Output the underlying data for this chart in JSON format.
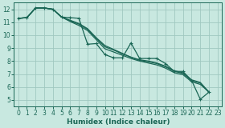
{
  "xlabel": "Humidex (Indice chaleur)",
  "ylabel": "",
  "bg_color": "#c8e8e0",
  "grid_color": "#a0c8c0",
  "line_color": "#1a6655",
  "spine_color": "#1a6655",
  "xlim": [
    -0.5,
    23.5
  ],
  "ylim": [
    4.5,
    12.5
  ],
  "xticks": [
    0,
    1,
    2,
    3,
    4,
    5,
    6,
    7,
    8,
    9,
    10,
    11,
    12,
    13,
    14,
    15,
    16,
    17,
    18,
    19,
    20,
    21,
    22,
    23
  ],
  "yticks": [
    5,
    6,
    7,
    8,
    9,
    10,
    11,
    12
  ],
  "lines": [
    {
      "x": [
        0,
        1,
        2,
        3,
        4,
        5,
        6,
        7,
        8,
        9,
        10,
        11,
        12,
        13,
        14,
        15,
        16,
        17,
        18,
        19,
        20,
        21,
        22
      ],
      "y": [
        11.3,
        11.35,
        12.1,
        12.1,
        12.0,
        11.4,
        11.15,
        10.9,
        10.5,
        9.8,
        9.2,
        8.9,
        8.6,
        8.3,
        8.1,
        8.0,
        7.85,
        7.6,
        7.25,
        7.1,
        6.55,
        6.35,
        5.6
      ],
      "marker": null,
      "lw": 0.9
    },
    {
      "x": [
        0,
        1,
        2,
        3,
        4,
        5,
        6,
        7,
        8,
        9,
        10,
        11,
        12,
        13,
        14,
        15,
        16,
        17,
        18,
        19,
        20,
        21,
        22
      ],
      "y": [
        11.3,
        11.35,
        12.1,
        12.1,
        12.0,
        11.4,
        11.1,
        10.85,
        10.45,
        9.75,
        9.1,
        8.85,
        8.55,
        8.3,
        8.05,
        7.95,
        7.8,
        7.55,
        7.2,
        7.05,
        6.5,
        6.3,
        5.6
      ],
      "marker": null,
      "lw": 0.9
    },
    {
      "x": [
        0,
        1,
        2,
        3,
        4,
        5,
        6,
        7,
        8,
        9,
        10,
        11,
        12,
        13,
        14,
        15,
        16,
        17,
        18,
        19,
        20,
        21,
        22
      ],
      "y": [
        11.3,
        11.35,
        12.1,
        12.1,
        12.0,
        11.4,
        11.05,
        10.75,
        10.35,
        9.65,
        8.95,
        8.7,
        8.45,
        8.2,
        8.0,
        7.85,
        7.7,
        7.45,
        7.1,
        6.95,
        6.4,
        6.2,
        5.6
      ],
      "marker": null,
      "lw": 0.9
    },
    {
      "x": [
        0,
        1,
        2,
        3,
        4,
        5,
        6,
        7,
        8,
        9,
        10,
        11,
        12,
        13,
        14,
        15,
        16,
        17,
        18,
        19,
        20,
        21,
        22
      ],
      "y": [
        11.3,
        11.35,
        12.1,
        12.1,
        12.0,
        11.4,
        11.35,
        11.3,
        9.3,
        9.35,
        8.5,
        8.25,
        8.25,
        9.4,
        8.2,
        8.2,
        8.2,
        7.8,
        7.2,
        7.2,
        6.5,
        5.05,
        5.6
      ],
      "marker": "+",
      "lw": 0.9
    }
  ]
}
